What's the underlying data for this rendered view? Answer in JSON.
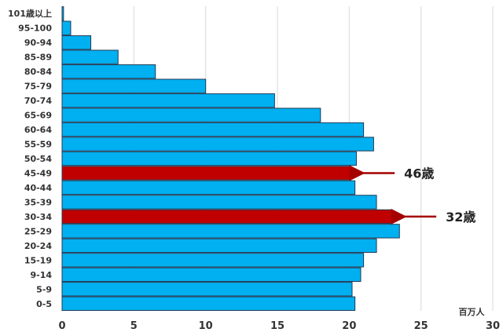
{
  "chart_data": {
    "type": "bar",
    "orientation": "horizontal",
    "categories": [
      "101歳以上",
      "95-100",
      "90-94",
      "85-89",
      "80-84",
      "75-79",
      "70-74",
      "65-69",
      "60-64",
      "55-59",
      "50-54",
      "45-49",
      "40-44",
      "35-39",
      "30-34",
      "25-29",
      "20-24",
      "15-19",
      "9-14",
      "5-9",
      "0-5"
    ],
    "values": [
      0.1,
      0.6,
      2.0,
      3.9,
      6.5,
      10.0,
      14.8,
      18.0,
      21.0,
      21.7,
      20.5,
      20.1,
      20.4,
      21.9,
      23.0,
      23.5,
      21.9,
      21.0,
      20.8,
      20.2,
      20.4
    ],
    "highlight_categories": [
      "45-49",
      "30-34"
    ],
    "xlim": [
      0,
      30
    ],
    "xticks": [
      0,
      5,
      10,
      15,
      20,
      25,
      30
    ],
    "xunit": "百万人",
    "grid": true,
    "colors": {
      "bar": "#00b0f0",
      "highlight": "#c00000",
      "bar_border": "#1f3b57",
      "arrow": "#a50000",
      "grid": "#d9d9d9"
    },
    "annotations": [
      {
        "text": "46歳",
        "category": "45-49"
      },
      {
        "text": "32歳",
        "category": "30-34"
      }
    ]
  }
}
